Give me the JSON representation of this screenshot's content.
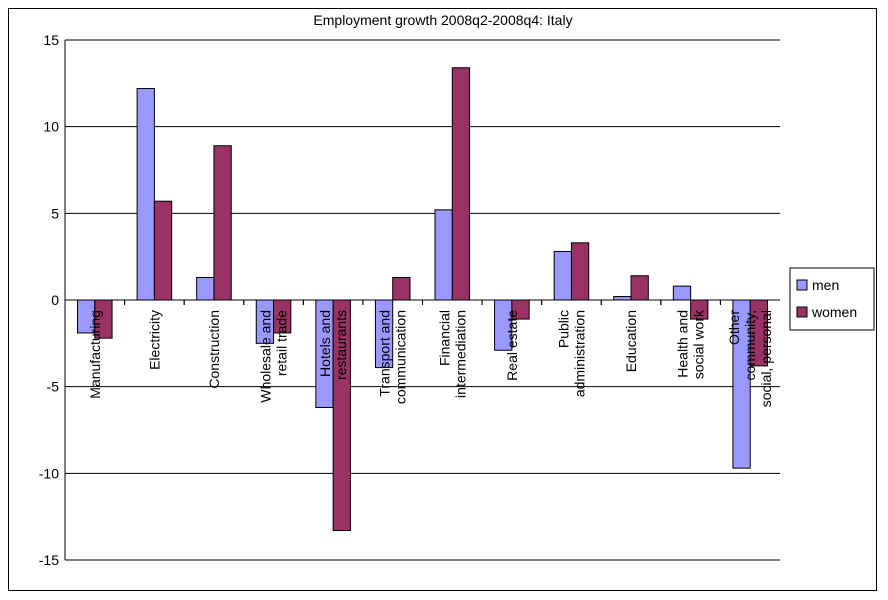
{
  "chart_data": {
    "type": "bar",
    "title": "Employment growth 2008q2-2008q4: Italy",
    "xlabel": "",
    "ylabel": "",
    "ylim": [
      -15,
      15
    ],
    "yticks": [
      15,
      10,
      5,
      0,
      -5,
      -10,
      -15
    ],
    "ytick_labels": [
      "15",
      "10",
      "5",
      "0",
      "-5",
      "-10",
      "-15"
    ],
    "grid": true,
    "legend_position": "right",
    "categories": [
      [
        "Manufacturing"
      ],
      [
        "Electricity"
      ],
      [
        "Construction"
      ],
      [
        "Wholesale and",
        "retail trade"
      ],
      [
        "Hotels and",
        "restaurants"
      ],
      [
        "Transport and",
        "communication"
      ],
      [
        "Financial",
        "intermediation"
      ],
      [
        "Real estate"
      ],
      [
        "Public",
        "administration"
      ],
      [
        "Education"
      ],
      [
        "Health and",
        "social work"
      ],
      [
        "Other",
        "community,",
        "social, personal"
      ]
    ],
    "series": [
      {
        "name": "men",
        "color": "#9999ff",
        "values": [
          -1.9,
          12.2,
          1.3,
          -2.5,
          -6.2,
          -3.9,
          5.2,
          -2.9,
          2.8,
          0.2,
          0.8,
          -9.7
        ]
      },
      {
        "name": "women",
        "color": "#993366",
        "values": [
          -2.2,
          5.7,
          8.9,
          -1.9,
          -13.3,
          1.3,
          13.4,
          -1.1,
          3.3,
          1.4,
          -1.1,
          -3.8
        ]
      }
    ]
  }
}
